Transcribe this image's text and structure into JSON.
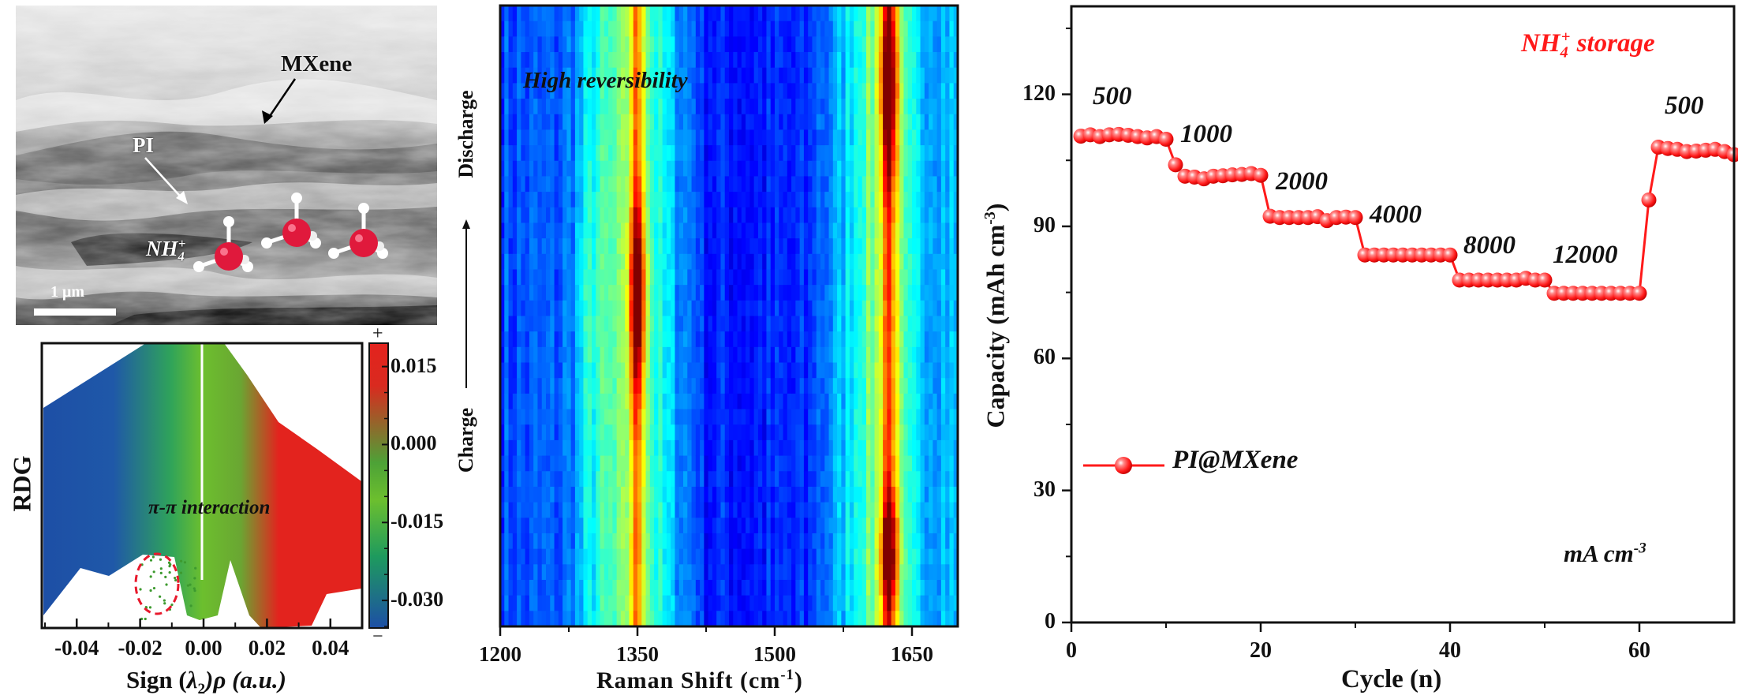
{
  "sem": {
    "mxene_label": "MXene",
    "pi_label": "PI",
    "nh4_label": "NH",
    "nh4_sub": "4",
    "nh4_sup": "+",
    "scale_label": "1 μm"
  },
  "chart_data": [
    {
      "type": "scatter",
      "title": "",
      "xlabel_prefix": "Sign (",
      "xlabel_lambda": "λ",
      "xlabel_sub": "2",
      "xlabel_suffix": ")ρ (a.u.)",
      "ylabel": "RDG",
      "xlim": [
        -0.051,
        0.05
      ],
      "xticks": [
        -0.04,
        -0.02,
        0.0,
        0.02,
        0.04
      ],
      "xtick_labels": [
        "-0.04",
        "-0.02",
        "0.00",
        "0.02",
        "0.04"
      ],
      "annotation": "π-π interaction",
      "colorbar": {
        "range": [
          -0.0353,
          0.0195
        ],
        "ticks": [
          0.015,
          0.0,
          -0.015,
          -0.03
        ],
        "tick_labels": [
          "0.015",
          "0.000",
          "-0.015",
          "-0.030"
        ],
        "top_label": "+",
        "bottom_label": "−",
        "colors": [
          "#1d4fa6",
          "#2aa05a",
          "#6cbf2e",
          "#e3231e"
        ]
      }
    },
    {
      "type": "heatmap",
      "title": "",
      "xlabel": "Raman Shift (cm",
      "xlabel_sup": "-1",
      "xlabel_end": ")",
      "xlim": [
        1200,
        1700
      ],
      "xticks": [
        1200,
        1350,
        1500,
        1650
      ],
      "xtick_labels": [
        "1200",
        "1350",
        "1500",
        "1650"
      ],
      "y_top_label": "Discharge",
      "y_bottom_label": "Charge",
      "annotation": "High reversibility",
      "peaks": [
        1350,
        1625
      ],
      "colormap": "jet"
    },
    {
      "type": "line",
      "title": "NH",
      "title_sub": "4",
      "title_sup": "+",
      "title_end": " storage",
      "title_color": "#ff1a1a",
      "xlabel": "Cycle (n)",
      "ylabel": "Capacity (mAh cm",
      "ylabel_sup": "-3",
      "ylabel_end": ")",
      "xlim": [
        0,
        70
      ],
      "ylim": [
        0,
        140
      ],
      "xticks": [
        0,
        20,
        40,
        60
      ],
      "xtick_labels": [
        "0",
        "20",
        "40",
        "60"
      ],
      "yticks": [
        0,
        30,
        60,
        90,
        120
      ],
      "ytick_labels": [
        "0",
        "30",
        "60",
        "90",
        "120"
      ],
      "series": [
        {
          "name": "PI@MXene",
          "color": "#ff1a1a",
          "x": [
            1,
            2,
            3,
            4,
            5,
            6,
            7,
            8,
            9,
            10,
            11,
            12,
            13,
            14,
            15,
            16,
            17,
            18,
            19,
            20,
            21,
            22,
            23,
            24,
            25,
            26,
            27,
            28,
            29,
            30,
            31,
            32,
            33,
            34,
            35,
            36,
            37,
            38,
            39,
            40,
            41,
            42,
            43,
            44,
            45,
            46,
            47,
            48,
            49,
            50,
            51,
            52,
            53,
            54,
            55,
            56,
            57,
            58,
            59,
            60,
            61,
            62,
            63,
            64,
            65,
            66,
            67,
            68,
            69,
            70
          ],
          "values": [
            110.5,
            110.8,
            110.4,
            110.8,
            110.9,
            110.7,
            110.4,
            110.1,
            110.4,
            109.8,
            104,
            101.4,
            101.2,
            100.8,
            101.4,
            101.5,
            101.7,
            101.8,
            102,
            101.6,
            92.3,
            92,
            92,
            92,
            92,
            92.2,
            91.3,
            92,
            92.1,
            92,
            83.5,
            83.5,
            83.5,
            83.5,
            83.5,
            83.5,
            83.5,
            83.5,
            83.5,
            83.5,
            77.8,
            77.8,
            77.8,
            77.8,
            77.8,
            77.8,
            77.8,
            78.2,
            77.8,
            77.8,
            74.8,
            74.8,
            74.8,
            74.8,
            74.8,
            74.8,
            74.8,
            74.8,
            74.8,
            74.8,
            96,
            108,
            107.7,
            107.5,
            107,
            107.1,
            107.3,
            107.5,
            107,
            106.3
          ]
        }
      ],
      "rate_labels": [
        "500",
        "1000",
        "2000",
        "4000",
        "8000",
        "12000",
        "500"
      ],
      "unit_label": "mA cm",
      "unit_sup": "-3"
    }
  ]
}
